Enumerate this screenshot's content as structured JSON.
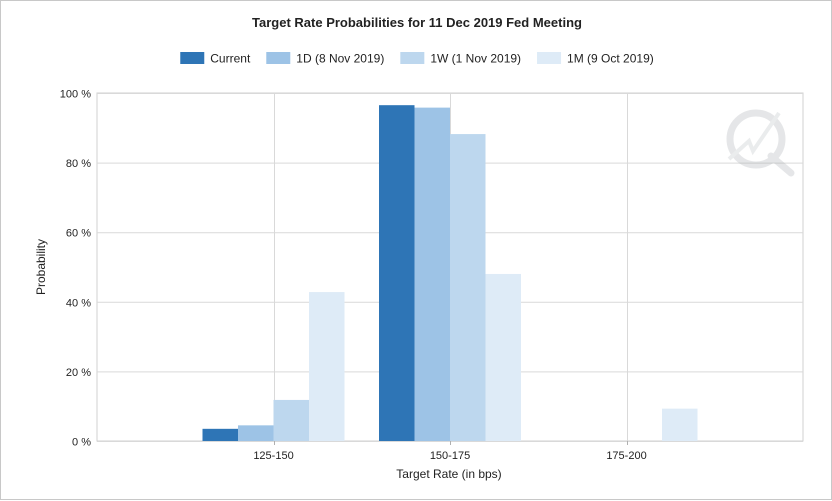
{
  "chart_data": {
    "type": "bar",
    "title": "Target Rate Probabilities for 11 Dec 2019 Fed Meeting",
    "xlabel": "Target Rate (in bps)",
    "ylabel": "Probability",
    "categories": [
      "125-150",
      "150-175",
      "175-200"
    ],
    "ylim": [
      0,
      100
    ],
    "yticks": [
      "0 %",
      "20 %",
      "40 %",
      "60 %",
      "80 %",
      "100 %"
    ],
    "ytick_values": [
      0,
      20,
      40,
      60,
      80,
      100
    ],
    "grid": true,
    "legend_position": "top",
    "series": [
      {
        "name": "Current",
        "color": "#2e75b6",
        "values": [
          3.5,
          96.5,
          0
        ]
      },
      {
        "name": "1D (8 Nov 2019)",
        "color": "#9dc3e6",
        "values": [
          4.5,
          95.8,
          0
        ]
      },
      {
        "name": "1W (1 Nov 2019)",
        "color": "#bdd7ee",
        "values": [
          11.8,
          88.2,
          0
        ]
      },
      {
        "name": "1M (9 Oct 2019)",
        "color": "#deebf7",
        "values": [
          42.8,
          48.0,
          9.3
        ]
      }
    ]
  },
  "logo": {
    "icon": "cme-fedwatch-watermark-icon"
  }
}
